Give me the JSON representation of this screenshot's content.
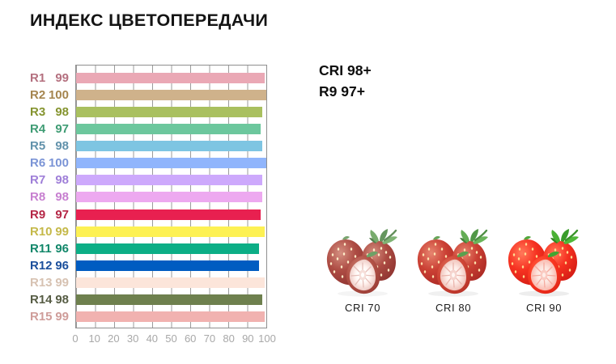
{
  "title": "ИНДЕКС ЦВЕТОПЕРЕДАЧИ",
  "summary": {
    "line1": "CRI 98+",
    "line2": "R9 97+"
  },
  "chart_data": {
    "type": "bar",
    "orientation": "horizontal",
    "title": "ИНДЕКС ЦВЕТОПЕРЕДАЧИ",
    "categories": [
      "R1",
      "R2",
      "R3",
      "R4",
      "R5",
      "R6",
      "R7",
      "R8",
      "R9",
      "R10",
      "R11",
      "R12",
      "R13",
      "R14",
      "R15"
    ],
    "values": [
      99,
      100,
      98,
      97,
      98,
      100,
      98,
      98,
      97,
      99,
      96,
      96,
      99,
      98,
      99
    ],
    "bar_colors": [
      "#eaa8b5",
      "#cfb28b",
      "#a9c05f",
      "#6cc79d",
      "#7ec5e2",
      "#90b5fc",
      "#cda9fc",
      "#eda9f0",
      "#e82050",
      "#fdf153",
      "#0cae86",
      "#005cc1",
      "#fce5da",
      "#6e804e",
      "#f1b2b0"
    ],
    "label_colors": [
      "#b4707f",
      "#a5854f",
      "#85942f",
      "#3f9c74",
      "#6292ab",
      "#7b94d6",
      "#9f7fd8",
      "#c77fd0",
      "#b52746",
      "#c5b94a",
      "#12876a",
      "#1b4f9c",
      "#d7c2b2",
      "#575d45",
      "#cf9d9a"
    ],
    "xlim": [
      0,
      100
    ],
    "x_ticks": [
      0,
      10,
      20,
      30,
      40,
      50,
      60,
      70,
      80,
      90,
      100
    ],
    "grid": "vertical-only",
    "grid_color": "#9b9b9b",
    "axis_text_color": "#a8a8a8",
    "legend": "none"
  },
  "comparison": {
    "items": [
      {
        "label": "CRI 70"
      },
      {
        "label": "CRI 80"
      },
      {
        "label": "CRI 90"
      }
    ]
  }
}
